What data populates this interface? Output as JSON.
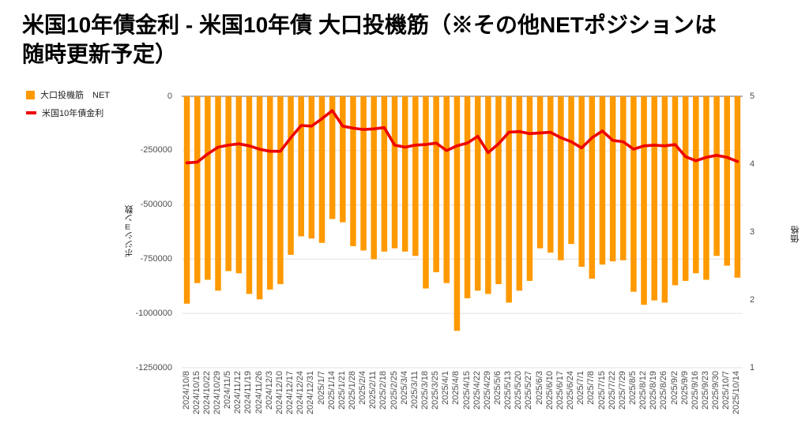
{
  "title": {
    "line1": "米国10年債金利 - 米国10年債 大口投機筋（※その他NETポジションは",
    "line2": "随時更新予定）"
  },
  "legend": {
    "bar_label": "大口投機筋　NET",
    "line_label": "米国10年債金利"
  },
  "colors": {
    "bar": "#FF9900",
    "line": "#EE0000",
    "gridline": "#e6e6e6",
    "zero_line": "#999999",
    "tick_text": "#4d4d4d",
    "title_text": "#000000"
  },
  "chart_data": {
    "type": "bar",
    "subtype": "combo bar + line, dual y-axis, weekly time series",
    "categories": [
      "2024/10/8",
      "2024/10/15",
      "2024/10/22",
      "2024/10/29",
      "2024/11/5",
      "2024/11/12",
      "2024/11/19",
      "2024/11/26",
      "2024/12/3",
      "2024/12/10",
      "2024/12/17",
      "2024/12/24",
      "2024/12/31",
      "2025/1/7",
      "2025/1/14",
      "2025/1/21",
      "2025/1/28",
      "2025/2/4",
      "2025/2/11",
      "2025/2/18",
      "2025/2/25",
      "2025/3/4",
      "2025/3/11",
      "2025/3/18",
      "2025/3/25",
      "2025/4/1",
      "2025/4/8",
      "2025/4/15",
      "2025/4/22",
      "2025/4/29",
      "2025/5/6",
      "2025/5/13",
      "2025/5/20",
      "2025/5/27",
      "2025/6/3",
      "2025/6/10",
      "2025/6/17",
      "2025/6/24",
      "2025/7/1",
      "2025/7/8",
      "2025/7/15",
      "2025/7/22",
      "2025/7/29",
      "2025/8/5",
      "2025/8/12",
      "2025/8/19",
      "2025/8/26",
      "2025/9/2",
      "2025/9/9",
      "2025/9/16",
      "2025/9/23",
      "2025/9/30",
      "2025/10/7",
      "2025/10/14"
    ],
    "series": [
      {
        "name": "大口投機筋　NET",
        "type": "bar",
        "axis": "left",
        "color": "#FF9900",
        "values": [
          -955000,
          -860000,
          -845000,
          -895000,
          -805000,
          -815000,
          -910000,
          -935000,
          -890000,
          -865000,
          -730000,
          -645000,
          -655000,
          -675000,
          -565000,
          -580000,
          -690000,
          -710000,
          -750000,
          -715000,
          -700000,
          -715000,
          -735000,
          -885000,
          -810000,
          -860000,
          -1080000,
          -930000,
          -895000,
          -910000,
          -865000,
          -950000,
          -895000,
          -850000,
          -700000,
          -720000,
          -755000,
          -680000,
          -785000,
          -840000,
          -775000,
          -760000,
          -755000,
          -900000,
          -960000,
          -940000,
          -950000,
          -870000,
          -850000,
          -815000,
          -845000,
          -735000,
          -780000,
          -835000
        ]
      },
      {
        "name": "米国10年債金利",
        "type": "line",
        "axis": "right",
        "color": "#EE0000",
        "values": [
          4.02,
          4.03,
          4.15,
          4.25,
          4.28,
          4.3,
          4.27,
          4.22,
          4.19,
          4.19,
          4.39,
          4.57,
          4.56,
          4.67,
          4.79,
          4.56,
          4.53,
          4.51,
          4.52,
          4.54,
          4.28,
          4.25,
          4.28,
          4.29,
          4.31,
          4.2,
          4.27,
          4.31,
          4.41,
          4.17,
          4.3,
          4.47,
          4.48,
          4.45,
          4.46,
          4.47,
          4.39,
          4.33,
          4.24,
          4.39,
          4.49,
          4.35,
          4.33,
          4.22,
          4.27,
          4.28,
          4.27,
          4.29,
          4.11,
          4.05,
          4.1,
          4.13,
          4.1,
          4.04
        ]
      }
    ],
    "left_axis": {
      "title": "ポジション数",
      "ticks": [
        0,
        -250000,
        -500000,
        -750000,
        -1000000,
        -1250000
      ],
      "range": [
        0,
        -1250000
      ]
    },
    "right_axis": {
      "title": "価格",
      "ticks": [
        5,
        4,
        3,
        2,
        1
      ],
      "range": [
        5,
        1
      ]
    },
    "grid": "horizontal gridlines at left-axis ticks, zero line darker",
    "legend_position": "top-left, vertical"
  }
}
